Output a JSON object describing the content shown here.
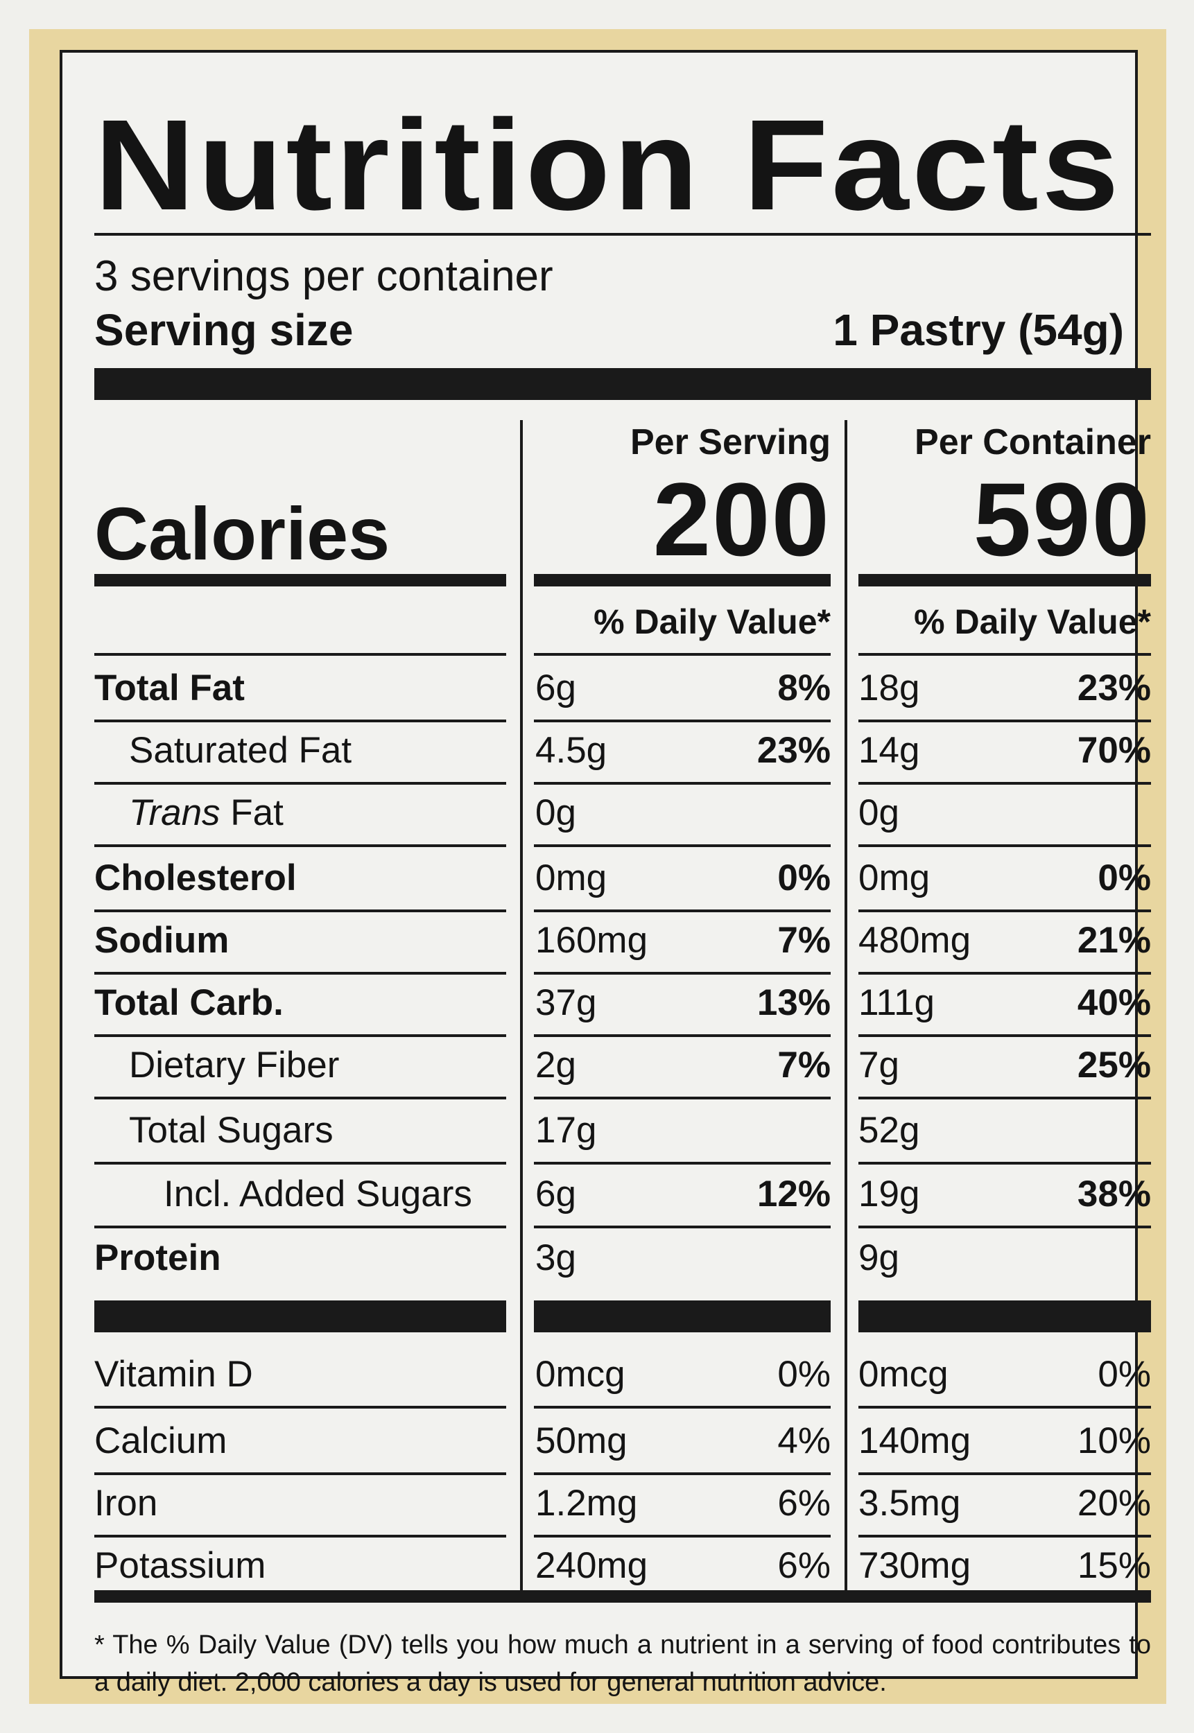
{
  "title": "Nutrition Facts",
  "servings_per_container": "3 servings per container",
  "serving_size": {
    "label": "Serving size",
    "value": "1 Pastry (54g)"
  },
  "columns": [
    {
      "heading": "Per Serving",
      "calories": "200",
      "dv_heading": "% Daily Value*"
    },
    {
      "heading": "Per Container",
      "calories": "590",
      "dv_heading": "% Daily Value*"
    }
  ],
  "calories_label": "Calories",
  "nutrients": [
    {
      "name": "Total Fat",
      "bold": true,
      "indent": 0,
      "serving": {
        "amount": "6g",
        "dv": "8%"
      },
      "container": {
        "amount": "18g",
        "dv": "23%"
      }
    },
    {
      "name": "Saturated Fat",
      "bold": false,
      "indent": 1,
      "serving": {
        "amount": "4.5g",
        "dv": "23%"
      },
      "container": {
        "amount": "14g",
        "dv": "70%"
      }
    },
    {
      "name_italic": "Trans",
      "name": " Fat",
      "bold": false,
      "indent": 1,
      "serving": {
        "amount": "0g",
        "dv": ""
      },
      "container": {
        "amount": "0g",
        "dv": ""
      }
    },
    {
      "name": "Cholesterol",
      "bold": true,
      "indent": 0,
      "serving": {
        "amount": "0mg",
        "dv": "0%"
      },
      "container": {
        "amount": "0mg",
        "dv": "0%"
      }
    },
    {
      "name": "Sodium",
      "bold": true,
      "indent": 0,
      "serving": {
        "amount": "160mg",
        "dv": "7%"
      },
      "container": {
        "amount": "480mg",
        "dv": "21%"
      }
    },
    {
      "name": "Total Carb.",
      "bold": true,
      "indent": 0,
      "serving": {
        "amount": "37g",
        "dv": "13%"
      },
      "container": {
        "amount": "111g",
        "dv": "40%"
      }
    },
    {
      "name": "Dietary Fiber",
      "bold": false,
      "indent": 1,
      "serving": {
        "amount": "2g",
        "dv": "7%"
      },
      "container": {
        "amount": "7g",
        "dv": "25%"
      }
    },
    {
      "name": "Total Sugars",
      "bold": false,
      "indent": 1,
      "serving": {
        "amount": "17g",
        "dv": ""
      },
      "container": {
        "amount": "52g",
        "dv": ""
      }
    },
    {
      "name": "Incl. Added Sugars",
      "bold": false,
      "indent": 2,
      "serving": {
        "amount": "6g",
        "dv": "12%"
      },
      "container": {
        "amount": "19g",
        "dv": "38%"
      }
    },
    {
      "name": "Protein",
      "bold": true,
      "indent": 0,
      "serving": {
        "amount": "3g",
        "dv": ""
      },
      "container": {
        "amount": "9g",
        "dv": ""
      }
    }
  ],
  "vitamins": [
    {
      "name": "Vitamin D",
      "serving": {
        "amount": "0mcg",
        "dv": "0%"
      },
      "container": {
        "amount": "0mcg",
        "dv": "0%"
      }
    },
    {
      "name": "Calcium",
      "serving": {
        "amount": "50mg",
        "dv": "4%"
      },
      "container": {
        "amount": "140mg",
        "dv": "10%"
      }
    },
    {
      "name": "Iron",
      "serving": {
        "amount": "1.2mg",
        "dv": "6%"
      },
      "container": {
        "amount": "3.5mg",
        "dv": "20%"
      }
    },
    {
      "name": "Potassium",
      "serving": {
        "amount": "240mg",
        "dv": "6%"
      },
      "container": {
        "amount": "730mg",
        "dv": "15%"
      }
    }
  ],
  "footnote": "* The % Daily Value (DV) tells you how much a nutrient in a serving of food contributes to a daily diet. 2,000 calories a day is used for general nutrition advice."
}
